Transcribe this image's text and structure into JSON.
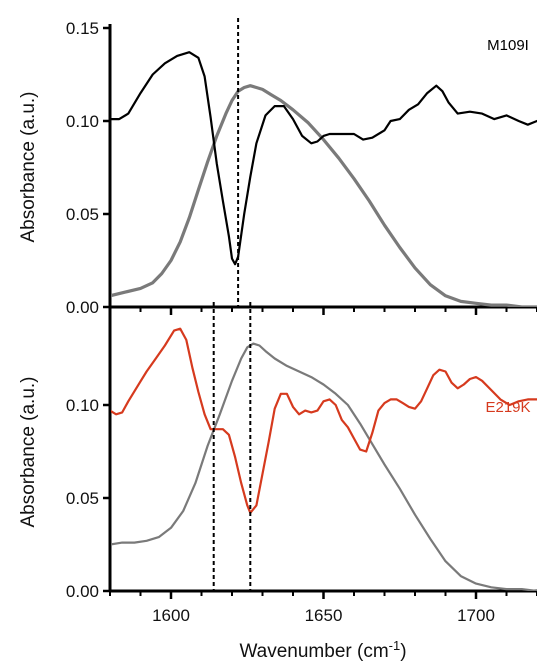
{
  "chart_data": [
    {
      "type": "line",
      "panel": "top",
      "ylabel": "Absorbance (a.u.)",
      "xlim": [
        1580,
        1720
      ],
      "ylim": [
        0,
        0.15
      ],
      "y_ticks": [
        "0.00",
        "0.05",
        "0.10",
        "0.15"
      ],
      "x_tick_labels_shown": false,
      "grid": false,
      "legend": "none",
      "annotation": "M109I",
      "colors": {
        "annotation": "#000000"
      },
      "vertical_dashed_lines": [
        1622
      ],
      "series": [
        {
          "color": "#000000",
          "x": [
            1580,
            1583,
            1586,
            1590,
            1594,
            1598,
            1602,
            1606,
            1609,
            1611,
            1613,
            1615,
            1617,
            1619,
            1620,
            1621,
            1622,
            1624,
            1626,
            1628,
            1631,
            1634,
            1637,
            1640,
            1643,
            1646,
            1648,
            1650,
            1652,
            1655,
            1660,
            1663,
            1666,
            1670,
            1672,
            1675,
            1678,
            1681,
            1684,
            1687,
            1689,
            1691,
            1694,
            1698,
            1702,
            1706,
            1710,
            1714,
            1717,
            1720
          ],
          "y": [
            0.101,
            0.101,
            0.104,
            0.115,
            0.125,
            0.131,
            0.135,
            0.137,
            0.134,
            0.124,
            0.102,
            0.077,
            0.057,
            0.038,
            0.026,
            0.023,
            0.027,
            0.05,
            0.07,
            0.088,
            0.103,
            0.108,
            0.108,
            0.101,
            0.092,
            0.088,
            0.089,
            0.092,
            0.093,
            0.093,
            0.093,
            0.09,
            0.091,
            0.095,
            0.1,
            0.101,
            0.106,
            0.109,
            0.115,
            0.119,
            0.116,
            0.11,
            0.104,
            0.105,
            0.104,
            0.101,
            0.103,
            0.1,
            0.098,
            0.1
          ]
        },
        {
          "color": "#7a7a7a",
          "x": [
            1580,
            1585,
            1590,
            1594,
            1597,
            1600,
            1603,
            1606,
            1609,
            1612,
            1615,
            1618,
            1620,
            1622,
            1624,
            1626,
            1628,
            1630,
            1633,
            1636,
            1640,
            1645,
            1650,
            1655,
            1660,
            1665,
            1670,
            1675,
            1680,
            1685,
            1690,
            1695,
            1700,
            1705,
            1710,
            1715,
            1720
          ],
          "y": [
            0.006,
            0.008,
            0.01,
            0.013,
            0.018,
            0.025,
            0.035,
            0.048,
            0.063,
            0.078,
            0.092,
            0.104,
            0.111,
            0.116,
            0.118,
            0.119,
            0.118,
            0.117,
            0.114,
            0.111,
            0.106,
            0.099,
            0.09,
            0.08,
            0.069,
            0.057,
            0.044,
            0.032,
            0.021,
            0.012,
            0.006,
            0.003,
            0.002,
            0.001,
            0.001,
            0.0,
            0.0
          ]
        }
      ]
    },
    {
      "type": "line",
      "panel": "bottom",
      "ylabel": "Absorbance (a.u.)",
      "xlabel": "Wavenumber (cm",
      "xlabel_superscript": "-1",
      "xlabel_suffix": ")",
      "xlim": [
        1580,
        1720
      ],
      "ylim": [
        0,
        0.15
      ],
      "y_ticks": [
        "0.00",
        "0.05",
        "0.10"
      ],
      "x_ticks": [
        "1600",
        "1650",
        "1700"
      ],
      "grid": false,
      "legend": "none",
      "annotation": "E219K",
      "colors": {
        "annotation": "#d63a1e"
      },
      "vertical_dashed_lines": [
        1614,
        1626
      ],
      "series": [
        {
          "color": "#d63a1e",
          "x": [
            1580,
            1582,
            1584,
            1586,
            1589,
            1592,
            1595,
            1598,
            1601,
            1603,
            1605,
            1607,
            1609,
            1611,
            1613,
            1615,
            1617,
            1619,
            1621,
            1623,
            1625,
            1626,
            1628,
            1630,
            1632,
            1634,
            1636,
            1638,
            1640,
            1642,
            1644,
            1646,
            1648,
            1650,
            1652,
            1654,
            1656,
            1658,
            1660,
            1662,
            1664,
            1666,
            1668,
            1670,
            1672,
            1674,
            1676,
            1678,
            1680,
            1682,
            1684,
            1686,
            1688,
            1690,
            1692,
            1694,
            1696,
            1698,
            1700,
            1702,
            1705,
            1708,
            1711,
            1714,
            1717,
            1720
          ],
          "y": [
            0.097,
            0.095,
            0.096,
            0.102,
            0.11,
            0.118,
            0.125,
            0.132,
            0.14,
            0.141,
            0.135,
            0.12,
            0.107,
            0.095,
            0.087,
            0.087,
            0.087,
            0.084,
            0.072,
            0.058,
            0.046,
            0.042,
            0.046,
            0.063,
            0.08,
            0.098,
            0.106,
            0.106,
            0.099,
            0.095,
            0.097,
            0.096,
            0.097,
            0.102,
            0.103,
            0.1,
            0.092,
            0.088,
            0.082,
            0.076,
            0.075,
            0.085,
            0.097,
            0.101,
            0.103,
            0.103,
            0.101,
            0.099,
            0.098,
            0.102,
            0.109,
            0.116,
            0.119,
            0.118,
            0.112,
            0.109,
            0.111,
            0.114,
            0.115,
            0.113,
            0.108,
            0.103,
            0.1,
            0.102,
            0.103,
            0.103
          ]
        },
        {
          "color": "#7a7a7a",
          "x": [
            1580,
            1584,
            1588,
            1592,
            1596,
            1600,
            1604,
            1608,
            1612,
            1616,
            1620,
            1623,
            1625,
            1627,
            1629,
            1631,
            1634,
            1638,
            1642,
            1646,
            1650,
            1654,
            1658,
            1662,
            1666,
            1670,
            1675,
            1680,
            1685,
            1690,
            1695,
            1700,
            1705,
            1710,
            1715,
            1720
          ],
          "y": [
            0.025,
            0.026,
            0.026,
            0.027,
            0.029,
            0.034,
            0.043,
            0.058,
            0.078,
            0.095,
            0.113,
            0.125,
            0.131,
            0.133,
            0.132,
            0.129,
            0.125,
            0.121,
            0.118,
            0.115,
            0.111,
            0.106,
            0.1,
            0.09,
            0.079,
            0.068,
            0.055,
            0.041,
            0.028,
            0.016,
            0.008,
            0.004,
            0.002,
            0.001,
            0.001,
            0.0
          ]
        }
      ]
    }
  ]
}
